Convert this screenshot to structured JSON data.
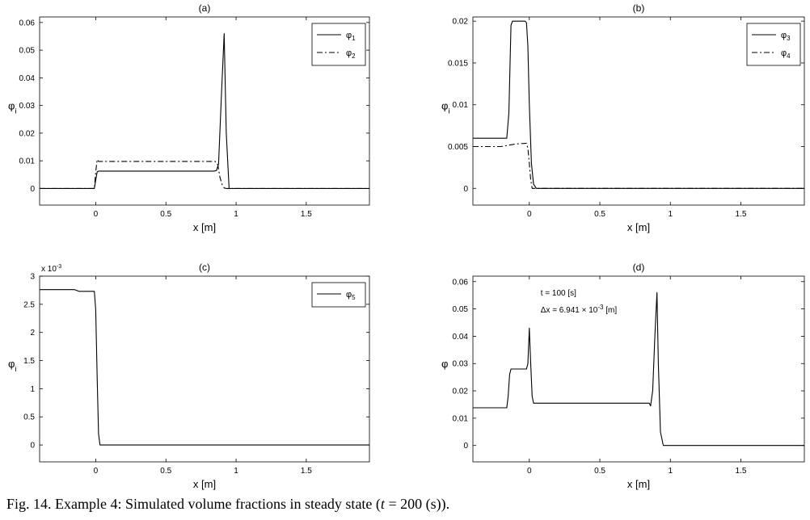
{
  "caption": {
    "prefix": "Fig. 14. Example 4: Simulated volume fractions in steady state (",
    "var": "t",
    "suffix": " = 200 (s))."
  },
  "chart_data": [
    {
      "type": "line",
      "title": "(a)",
      "xlabel": "x [m]",
      "ylabel": "φ",
      "ylabel_sub": "i",
      "xlim": [
        -0.4,
        1.95
      ],
      "ylim": [
        -0.006,
        0.062
      ],
      "xticks": [
        0,
        0.5,
        1,
        1.5
      ],
      "xtick_labels": [
        "0",
        "0.5",
        "1",
        "1.5"
      ],
      "yticks": [
        0,
        0.01,
        0.02,
        0.03,
        0.04,
        0.05,
        0.06
      ],
      "ytick_labels": [
        "0",
        "0.01",
        "0.02",
        "0.03",
        "0.04",
        "0.05",
        "0.06"
      ],
      "legend": "top-right",
      "series": [
        {
          "name": "φ",
          "sub": "1",
          "dash": "solid",
          "x": [
            -0.4,
            -0.01,
            0.0,
            0.01,
            0.02,
            0.84,
            0.86,
            0.875,
            0.895,
            0.915,
            0.93,
            0.95,
            1.95
          ],
          "y": [
            0,
            0,
            0.003,
            0.006,
            0.0063,
            0.0063,
            0.0065,
            0.009,
            0.033,
            0.056,
            0.02,
            0,
            0
          ]
        },
        {
          "name": "φ",
          "sub": "2",
          "dash": "dashdot",
          "x": [
            -0.4,
            -0.01,
            0.0,
            0.01,
            0.02,
            0.85,
            0.87,
            0.885,
            0.9,
            0.915,
            0.93,
            1.95
          ],
          "y": [
            0,
            0,
            0.006,
            0.0105,
            0.0098,
            0.0098,
            0.0085,
            0.004,
            0.0015,
            0.0002,
            0,
            0
          ]
        }
      ]
    },
    {
      "type": "line",
      "title": "(b)",
      "xlabel": "x [m]",
      "ylabel": "φ",
      "ylabel_sub": "i",
      "xlim": [
        -0.4,
        1.95
      ],
      "ylim": [
        -0.002,
        0.0205
      ],
      "xticks": [
        0,
        0.5,
        1,
        1.5
      ],
      "xtick_labels": [
        "0",
        "0.5",
        "1",
        "1.5"
      ],
      "yticks": [
        0,
        0.005,
        0.01,
        0.015,
        0.02
      ],
      "ytick_labels": [
        "0",
        "0.005",
        "0.01",
        "0.015",
        "0.02"
      ],
      "legend": "top-right",
      "series": [
        {
          "name": "φ",
          "sub": "3",
          "dash": "solid",
          "x": [
            -0.4,
            -0.16,
            -0.145,
            -0.13,
            -0.12,
            -0.03,
            -0.02,
            -0.01,
            0.0,
            0.015,
            0.03,
            0.05,
            1.95
          ],
          "y": [
            0.006,
            0.006,
            0.009,
            0.0195,
            0.02,
            0.02,
            0.0198,
            0.017,
            0.01,
            0.003,
            0.0005,
            0,
            0
          ]
        },
        {
          "name": "φ",
          "sub": "4",
          "dash": "dashdot",
          "x": [
            -0.4,
            -0.2,
            -0.1,
            -0.02,
            -0.01,
            0.0,
            0.01,
            0.02,
            1.95
          ],
          "y": [
            0.005,
            0.005,
            0.0053,
            0.0054,
            0.0048,
            0.003,
            0.001,
            0,
            0
          ]
        }
      ]
    },
    {
      "type": "line",
      "title": "(c)",
      "xlabel": "x [m]",
      "ylabel": "φ",
      "ylabel_sub": "i",
      "multiplier": "x 10",
      "multiplier_exp": "-3",
      "xlim": [
        -0.4,
        1.95
      ],
      "ylim": [
        -0.0003,
        0.003
      ],
      "xticks": [
        0,
        0.5,
        1,
        1.5
      ],
      "xtick_labels": [
        "0",
        "0.5",
        "1",
        "1.5"
      ],
      "yticks": [
        0,
        0.0005,
        0.001,
        0.0015,
        0.002,
        0.0025,
        0.003
      ],
      "ytick_labels": [
        "0",
        "0.5",
        "1",
        "1.5",
        "2",
        "2.5",
        "3"
      ],
      "legend": "top-right",
      "series": [
        {
          "name": "φ",
          "sub": "5",
          "dash": "solid",
          "x": [
            -0.4,
            -0.15,
            -0.12,
            -0.01,
            0.0,
            0.01,
            0.02,
            0.03,
            1.95
          ],
          "y": [
            0.00276,
            0.00276,
            0.00273,
            0.00273,
            0.0024,
            0.0012,
            0.0002,
            0,
            0
          ]
        }
      ]
    },
    {
      "type": "line",
      "title": "(d)",
      "xlabel": "x [m]",
      "ylabel": "φ",
      "xlim": [
        -0.4,
        1.95
      ],
      "ylim": [
        -0.006,
        0.062
      ],
      "xticks": [
        0,
        0.5,
        1,
        1.5
      ],
      "xtick_labels": [
        "0",
        "0.5",
        "1",
        "1.5"
      ],
      "yticks": [
        0,
        0.01,
        0.02,
        0.03,
        0.04,
        0.05,
        0.06
      ],
      "ytick_labels": [
        "0",
        "0.01",
        "0.02",
        "0.03",
        "0.04",
        "0.05",
        "0.06"
      ],
      "annotation_line1": "t = 100 [s]",
      "annotation_line2_pre": "Δx = 6.941 × 10",
      "annotation_line2_exp": "-3",
      "annotation_line2_post": " [m]",
      "series": [
        {
          "name": "",
          "dash": "solid",
          "x": [
            -0.4,
            -0.16,
            -0.15,
            -0.14,
            -0.13,
            -0.02,
            -0.01,
            0.0,
            0.01,
            0.02,
            0.03,
            0.85,
            0.86,
            0.875,
            0.89,
            0.905,
            0.915,
            0.93,
            0.95,
            1.95
          ],
          "y": [
            0.0138,
            0.0138,
            0.018,
            0.026,
            0.028,
            0.028,
            0.03,
            0.043,
            0.03,
            0.018,
            0.0155,
            0.0155,
            0.0145,
            0.02,
            0.04,
            0.056,
            0.03,
            0.005,
            0,
            0
          ]
        }
      ]
    }
  ]
}
